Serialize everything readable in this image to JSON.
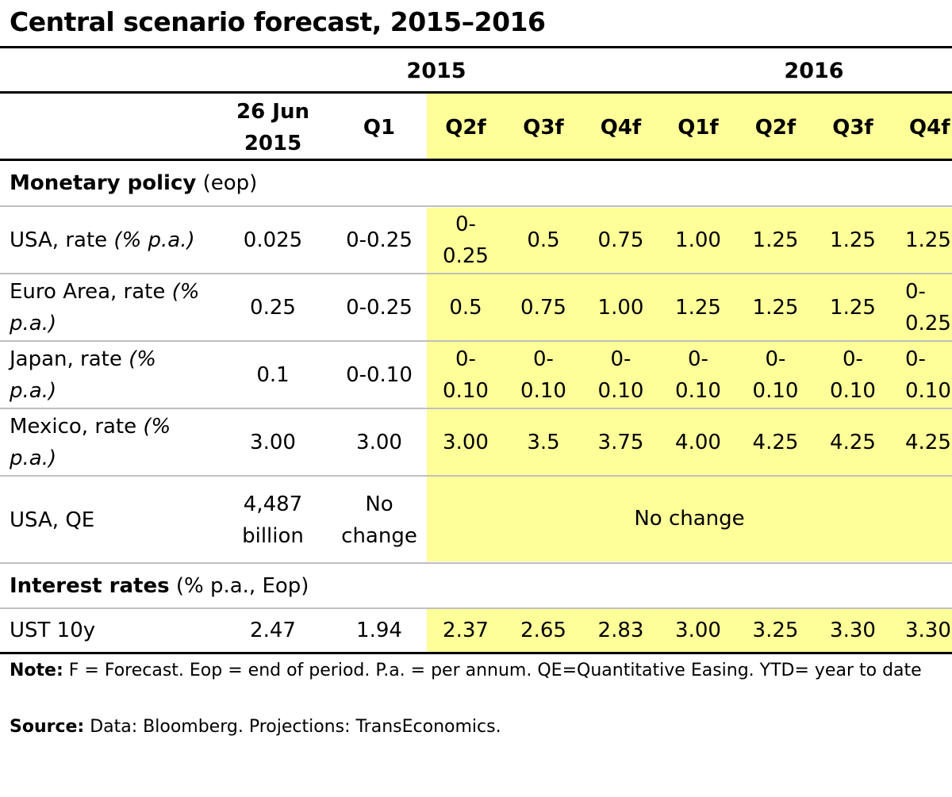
{
  "title": "Central scenario forecast, 2015–2016",
  "year_headers": [
    "2015",
    "2016"
  ],
  "column_headers": {
    "date_line1": "26 Jun",
    "date_line2": "2015",
    "cols": [
      "Q1",
      "Q2f",
      "Q3f",
      "Q4f",
      "Q1f",
      "Q2f",
      "Q3f",
      "Q4f"
    ]
  },
  "sections": [
    {
      "bold": "Monetary policy",
      "rest": " (eop)"
    },
    {
      "bold": "Interest rates",
      "rest": " (% p.a., Eop)"
    }
  ],
  "rows": {
    "usa_rate": {
      "label": "USA, rate ",
      "unit": "(% p.a.)",
      "values": [
        "0.025",
        "0-0.25",
        "0-\n0.25",
        "0.5",
        "0.75",
        "1.00",
        "1.25",
        "1.25",
        "1.25"
      ]
    },
    "euro_rate": {
      "label": "Euro Area, rate ",
      "unit": "(%\np.a.)",
      "values": [
        "0.25",
        "0-0.25",
        "0.5",
        "0.75",
        "1.00",
        "1.25",
        "1.25",
        "1.25",
        "0-\n0.25"
      ]
    },
    "japan_rate": {
      "label": "Japan, rate ",
      "unit": "(%\np.a.)",
      "values": [
        "0.1",
        "0-0.10",
        "0-\n0.10",
        "0-\n0.10",
        "0-\n0.10",
        "0-\n0.10",
        "0-\n0.10",
        "0-\n0.10",
        "0-\n0.10"
      ]
    },
    "mexico_rate": {
      "label": "Mexico, rate ",
      "unit": "(%\np.a.)",
      "values": [
        "3.00",
        "3.00",
        "3.00",
        "3.5",
        "3.75",
        "4.00",
        "4.25",
        "4.25",
        "4.25"
      ]
    },
    "usa_qe": {
      "label": "USA, QE",
      "values": [
        "4,487\nbillion",
        "No\nchange",
        "No change"
      ]
    },
    "ust_10y": {
      "label": "UST 10y",
      "values": [
        "2.47",
        "1.94",
        "2.37",
        "2.65",
        "2.83",
        "3.00",
        "3.25",
        "3.30",
        "3.30"
      ]
    }
  },
  "note": {
    "bold": "Note:",
    "text": " F = Forecast. Eop = end of period. P.a. = per annum. QE=Quantitative Easing. YTD= year to date"
  },
  "source": {
    "bold": "Source:",
    "text": " Data: Bloomberg. Projections: TransEconomics."
  },
  "colors": {
    "forecast_highlight": "#ffff99",
    "grid": "#bfbfbf",
    "rule": "#000000"
  }
}
